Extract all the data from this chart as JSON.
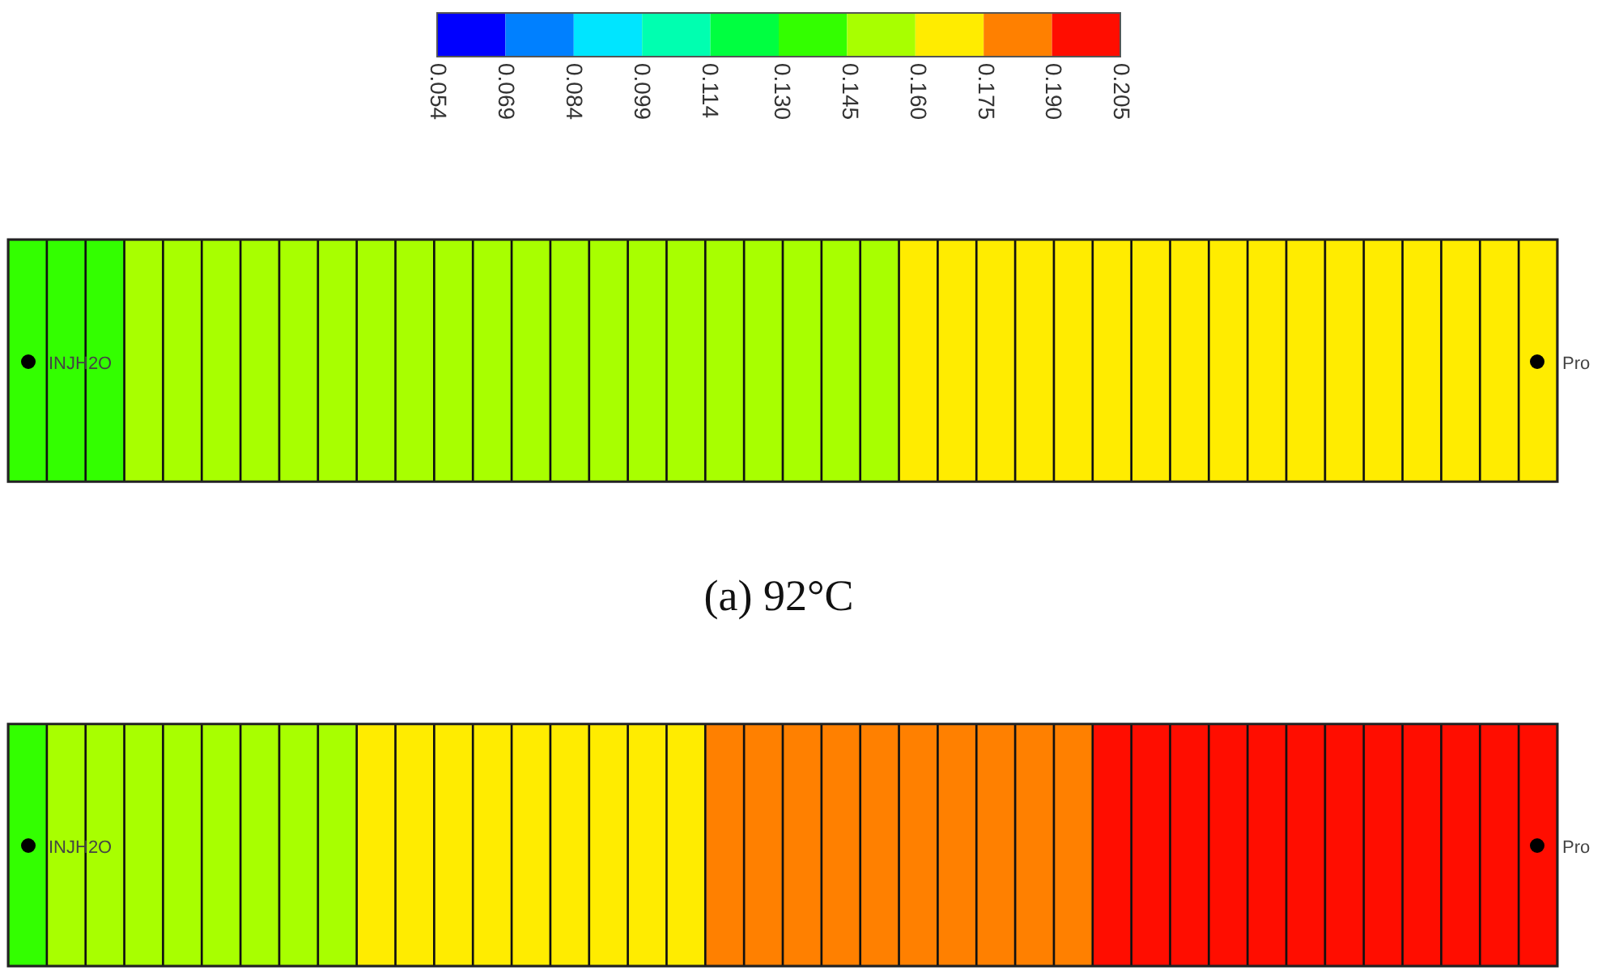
{
  "chart_data": {
    "type": "heatmap",
    "title": "(a) 92°C",
    "categories": [
      null,
      null,
      null,
      null,
      null,
      null,
      null,
      null,
      null,
      null,
      null,
      null,
      null,
      null,
      null,
      null,
      null,
      null,
      null,
      null,
      null,
      null,
      null,
      null,
      null,
      null,
      null,
      null,
      null,
      null,
      null,
      null,
      null,
      null,
      null,
      null,
      null,
      null,
      null,
      null
    ],
    "y_categories": [
      null,
      null
    ],
    "cells": [
      [
        0.138,
        0.138,
        0.138,
        0.153,
        0.153,
        0.153,
        0.153,
        0.153,
        0.153,
        0.153,
        0.153,
        0.153,
        0.153,
        0.153,
        0.153,
        0.153,
        0.153,
        0.153,
        0.153,
        0.153,
        0.153,
        0.153,
        0.153,
        0.168,
        0.168,
        0.168,
        0.168,
        0.168,
        0.168,
        0.168,
        0.168,
        0.168,
        0.168,
        0.168,
        0.168,
        0.168,
        0.168,
        0.168,
        0.168,
        0.168
      ],
      [
        0.138,
        0.153,
        0.153,
        0.153,
        0.153,
        0.153,
        0.153,
        0.153,
        0.153,
        0.168,
        0.168,
        0.168,
        0.168,
        0.168,
        0.168,
        0.168,
        0.168,
        0.168,
        0.183,
        0.183,
        0.183,
        0.183,
        0.183,
        0.183,
        0.183,
        0.183,
        0.183,
        0.183,
        0.198,
        0.198,
        0.198,
        0.198,
        0.198,
        0.198,
        0.198,
        0.198,
        0.198,
        0.198,
        0.198,
        0.198
      ]
    ],
    "clim": [
      0.054,
      0.205
    ],
    "cticks": [
      0.054,
      0.069,
      0.084,
      0.099,
      0.114,
      {
        "value": 0.13,
        "label": "0.130"
      },
      0.145,
      {
        "value": 0.16,
        "label": "0.160"
      },
      0.175,
      {
        "value": 0.19,
        "label": "0.190"
      },
      0.205
    ],
    "annotations": [
      "INJH2O",
      "Pro",
      "INJH2O",
      "Pro"
    ]
  }
}
